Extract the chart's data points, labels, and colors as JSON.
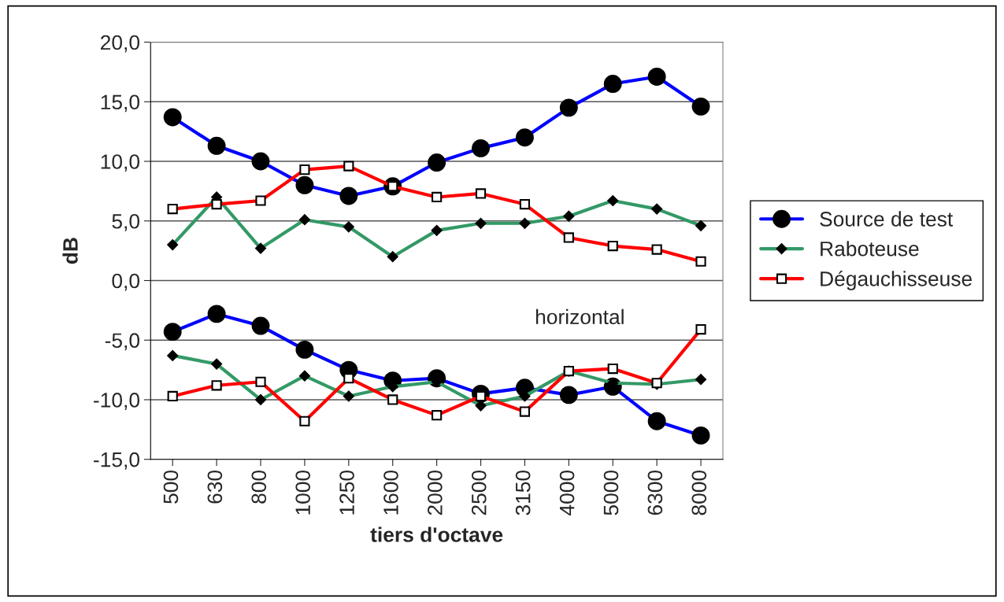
{
  "chart_data": {
    "type": "line",
    "xlabel": "tiers d'octave",
    "ylabel": "dB",
    "categories": [
      "500",
      "630",
      "800",
      "1000",
      "1250",
      "1600",
      "2000",
      "2500",
      "3150",
      "4000",
      "5000",
      "6300",
      "8000"
    ],
    "series": [
      {
        "name": "Source de test",
        "color": "#0000ff",
        "marker": "circle",
        "values": [
          13.7,
          11.3,
          10.0,
          8.0,
          7.1,
          7.9,
          9.9,
          11.1,
          12.0,
          14.5,
          16.5,
          17.1,
          14.6
        ]
      },
      {
        "name": "Raboteuse",
        "color": "#339966",
        "marker": "diamond",
        "values": [
          3.0,
          7.0,
          2.7,
          5.1,
          4.5,
          2.0,
          4.2,
          4.8,
          4.8,
          5.4,
          6.7,
          6.0,
          4.6
        ]
      },
      {
        "name": "Dégauchisseuse",
        "color": "#ff0000",
        "marker": "square",
        "values": [
          6.0,
          6.4,
          6.7,
          9.3,
          9.6,
          7.9,
          7.0,
          7.3,
          6.4,
          3.6,
          2.9,
          2.6,
          1.6
        ]
      },
      {
        "color": "#0000ff",
        "marker": "circle",
        "values": [
          -4.3,
          -2.8,
          -3.8,
          -5.8,
          -7.5,
          -8.4,
          -8.2,
          -9.5,
          -9.0,
          -9.6,
          -8.9,
          -11.8,
          -13.0
        ]
      },
      {
        "color": "#339966",
        "marker": "diamond",
        "values": [
          -6.3,
          -7.0,
          -10.0,
          -8.0,
          -9.7,
          -8.9,
          -8.5,
          -10.5,
          -9.7,
          -7.6,
          -8.6,
          -8.7,
          -8.3
        ]
      },
      {
        "color": "#ff0000",
        "marker": "square",
        "values": [
          -9.7,
          -8.8,
          -8.5,
          -11.8,
          -8.2,
          -10.0,
          -11.3,
          -9.7,
          -11.0,
          -7.6,
          -7.4,
          -8.6,
          -4.1
        ]
      }
    ],
    "ylim": [
      -15,
      20
    ],
    "yticks": [
      {
        "value": -15,
        "label": "-15,0"
      },
      {
        "value": -10,
        "label": "-10,0"
      },
      {
        "value": -5,
        "label": "-5,0"
      },
      {
        "value": 0,
        "label": "0,0"
      },
      {
        "value": 5,
        "label": "5,0"
      },
      {
        "value": 10,
        "label": "10,0"
      },
      {
        "value": 15,
        "label": "15,0"
      },
      {
        "value": 20,
        "label": "20,0"
      }
    ],
    "grid": "y",
    "legend": "right",
    "line_style": "solid",
    "annotations": [
      "horizontal"
    ]
  }
}
